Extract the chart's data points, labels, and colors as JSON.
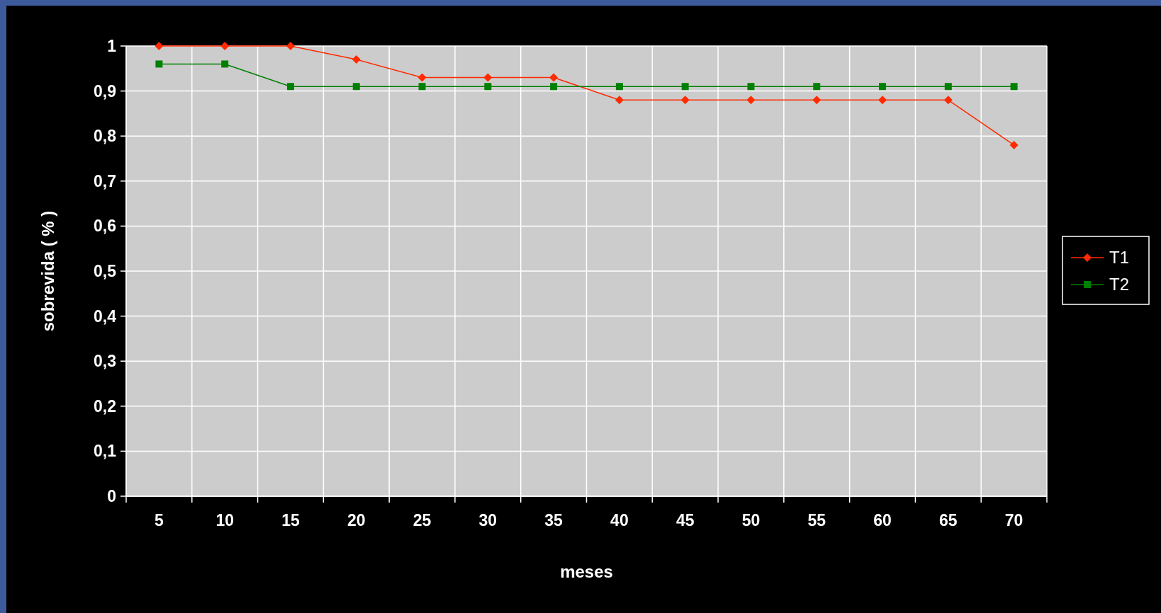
{
  "chart_data": {
    "type": "line",
    "xlabel": "meses",
    "ylabel": "sobrevida ( % )",
    "categories": [
      "5",
      "10",
      "15",
      "20",
      "25",
      "30",
      "35",
      "40",
      "45",
      "50",
      "55",
      "60",
      "65",
      "70"
    ],
    "series": [
      {
        "name": "T1",
        "color": "#ff2a00",
        "marker": "diamond",
        "values": [
          1,
          1,
          1,
          0.97,
          0.93,
          0.93,
          0.93,
          0.88,
          0.88,
          0.88,
          0.88,
          0.88,
          0.88,
          0.78
        ]
      },
      {
        "name": "T2",
        "color": "#008000",
        "marker": "square",
        "values": [
          0.96,
          0.96,
          0.91,
          0.91,
          0.91,
          0.91,
          0.91,
          0.91,
          0.91,
          0.91,
          0.91,
          0.91,
          0.91,
          0.91
        ]
      }
    ],
    "ylim": [
      0,
      1
    ],
    "yticks": [
      0,
      {
        "value": 0.1,
        "label": "0,1"
      },
      {
        "value": 0.2,
        "label": "0,2"
      },
      {
        "value": 0.3,
        "label": "0,3"
      },
      {
        "value": 0.4,
        "label": "0,4"
      },
      {
        "value": 0.5,
        "label": "0,5"
      },
      {
        "value": 0.6,
        "label": "0,6"
      },
      {
        "value": 0.7,
        "label": "0,7"
      },
      {
        "value": 0.8,
        "label": "0,8"
      },
      {
        "value": 0.9,
        "label": "0,9"
      },
      1
    ],
    "grid": true,
    "legend": "right",
    "line_style": "solid"
  }
}
